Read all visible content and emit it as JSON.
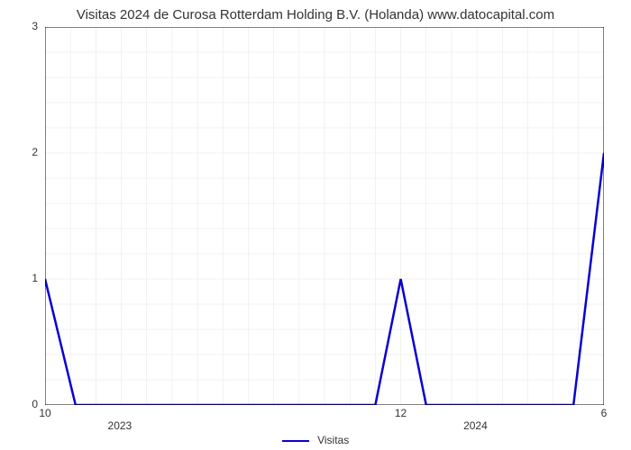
{
  "chart": {
    "type": "line",
    "title": "Visitas 2024 de Curosa Rotterdam Holding B.V. (Holanda) www.datocapital.com",
    "title_fontsize": 15,
    "title_color": "#333333",
    "background_color": "#ffffff",
    "plot_border_color": "#000000",
    "plot_border_width": 1,
    "y_axis": {
      "min": 0,
      "max": 3,
      "ticks": [
        0,
        1,
        2,
        3
      ],
      "minor_step": 0.2,
      "label_fontsize": 12,
      "label_color": "#333333"
    },
    "x_axis": {
      "min": 0,
      "max": 22,
      "major_ticks": [
        {
          "pos": 0,
          "label": "10"
        },
        {
          "pos": 14,
          "label": "12"
        },
        {
          "pos": 22,
          "label": "6"
        }
      ],
      "year_labels": [
        {
          "pos": 3,
          "label": "2023"
        },
        {
          "pos": 17,
          "label": "2024"
        }
      ],
      "minor_step": 1,
      "label_fontsize": 12,
      "label_color": "#333333"
    },
    "grid": {
      "y_minor_color": "#e5e5e5",
      "y_minor_width": 0.5,
      "x_minor_color": "#e5e5e5",
      "x_minor_width": 0.5
    },
    "series": {
      "name": "Visitas",
      "color": "#0b00d1",
      "line_width": 2.5,
      "data": [
        {
          "x": 0,
          "y": 1.0
        },
        {
          "x": 1.2,
          "y": 0
        },
        {
          "x": 13,
          "y": 0
        },
        {
          "x": 14,
          "y": 1.0
        },
        {
          "x": 15,
          "y": 0
        },
        {
          "x": 20.8,
          "y": 0
        },
        {
          "x": 22,
          "y": 2.0
        }
      ]
    },
    "legend": {
      "label": "Visitas",
      "fontsize": 12,
      "color": "#333333"
    }
  }
}
